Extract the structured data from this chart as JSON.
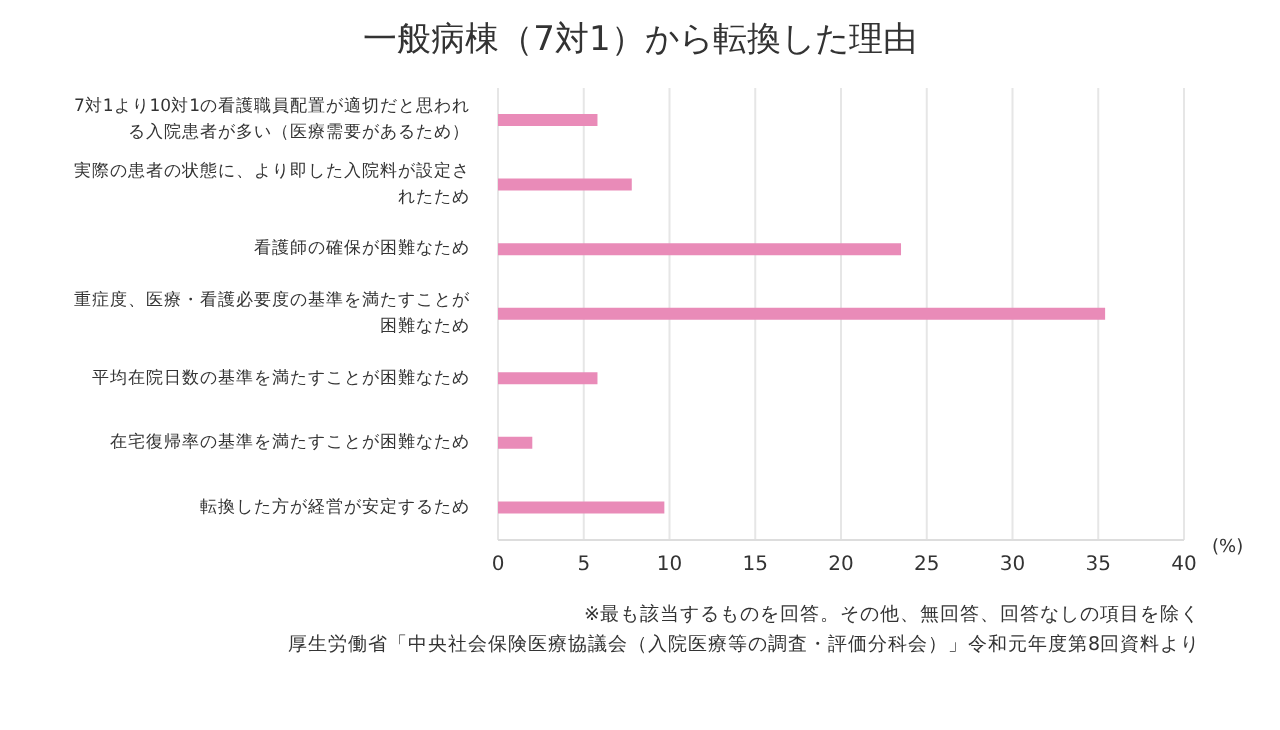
{
  "chart_data": {
    "type": "bar",
    "orientation": "horizontal",
    "title": "一般病棟（7対1）から転換した理由",
    "xlabel": "(%)",
    "categories": [
      "7対1より10対1の看護職員配置が適切だと思われる入院患者が多い（医療需要があるため）",
      "実際の患者の状態に、より即した入院料が設定されたため",
      "看護師の確保が困難なため",
      "重症度、医療・看護必要度の基準を満たすことが困難なため",
      "平均在院日数の基準を満たすことが困難なため",
      "在宅復帰率の基準を満たすことが困難なため",
      "転換した方が経営が安定するため"
    ],
    "values": [
      5.8,
      7.8,
      23.5,
      35.4,
      5.8,
      2.0,
      9.7
    ],
    "color": "#e98bb8",
    "xlim": [
      0,
      40
    ],
    "xticks": [
      0,
      5,
      10,
      15,
      20,
      25,
      30,
      35,
      40
    ],
    "grid": "x",
    "annotations": [
      "※最も該当するものを回答。その他、無回答、回答なしの項目を除く",
      "厚生労働省「中央社会保険医療協議会（入院医療等の調査・評価分科会）」令和元年度第8回資料より"
    ]
  }
}
